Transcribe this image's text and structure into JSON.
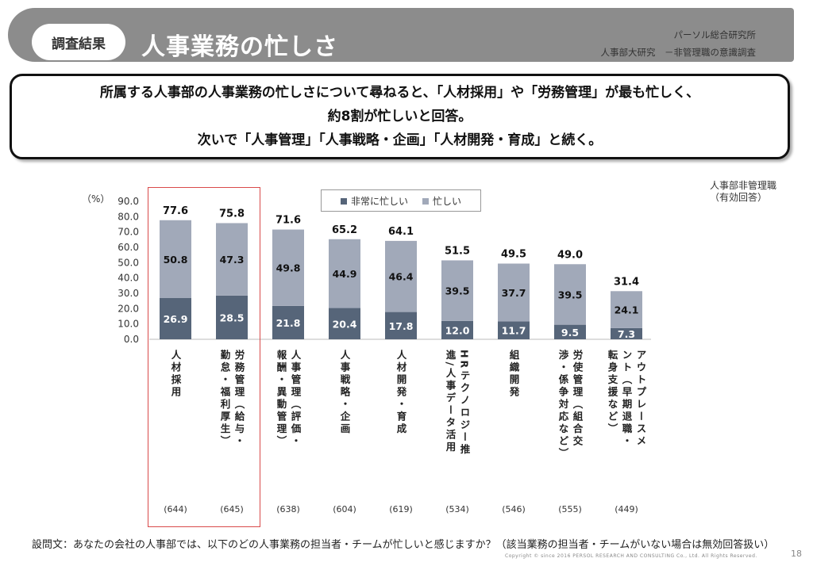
{
  "header": {
    "badge": "調査結果",
    "title": "人事業務の忙しさ",
    "org": "パーソル総合研究所",
    "survey": "人事部大研究　－非管理職の意識調査"
  },
  "summary": {
    "line1": "所属する人事部の人事業務の忙しさについて尋ねると、「人材採用」や「労務管理」が最も忙しく、",
    "line2": "約8割が忙しいと回答。",
    "line3": "次いで「人事管理」「人事戦略・企画」「人材開発・育成」と続く。"
  },
  "note_right": [
    "人事部非管理職",
    "（有効回答）"
  ],
  "colors": {
    "very_busy": "#566579",
    "busy": "#a1a9b9",
    "highlight": "#d94a4a"
  },
  "chart_data": {
    "type": "bar",
    "stacked": true,
    "unit_label": "（%）",
    "ylim": [
      0,
      90
    ],
    "yticks": [
      "0.0",
      "10.0",
      "20.0",
      "30.0",
      "40.0",
      "50.0",
      "60.0",
      "70.0",
      "80.0",
      "90.0"
    ],
    "legend": [
      "非常に忙しい",
      "忙しい"
    ],
    "categories": [
      {
        "label_columns": [
          "人材採用"
        ],
        "n": "(644)"
      },
      {
        "label_columns": [
          "労務管理（給与・",
          "勤怠・福利厚生）"
        ],
        "n": "(645)"
      },
      {
        "label_columns": [
          "人事管理（評価・",
          "報酬・異動管理）"
        ],
        "n": "(638)"
      },
      {
        "label_columns": [
          "人事戦略・企画"
        ],
        "n": "(604)"
      },
      {
        "label_columns": [
          "人材開発・育成"
        ],
        "n": "(619)"
      },
      {
        "label_columns": [
          "HRテクノロジー推",
          "進/人事データ活用"
        ],
        "n": "(534)"
      },
      {
        "label_columns": [
          "組織開発"
        ],
        "n": "(546)"
      },
      {
        "label_columns": [
          "労使管理（組合交",
          "渉・係争対応など）"
        ],
        "n": "(555)"
      },
      {
        "label_columns": [
          "アウトプレースメ",
          "ント（早期退職・",
          "転身支援など）"
        ],
        "n": "(449)"
      }
    ],
    "series": [
      {
        "name": "非常に忙しい",
        "values": [
          26.9,
          28.5,
          21.8,
          20.4,
          17.8,
          12.0,
          11.7,
          9.5,
          7.3
        ]
      },
      {
        "name": "忙しい",
        "values": [
          50.8,
          47.3,
          49.8,
          44.9,
          46.4,
          39.5,
          37.7,
          39.5,
          24.1
        ]
      }
    ],
    "totals": [
      77.6,
      75.8,
      71.6,
      65.2,
      64.1,
      51.5,
      49.5,
      49.0,
      31.4
    ],
    "highlighted_categories": [
      0,
      1
    ]
  },
  "question": "設問文：あなたの会社の人事部では、以下のどの人事業務の担当者・チームが忙しいと感じますか？（該当業務の担当者・チームがいない場合は無効回答扱い）",
  "copyright": "Copyright © since 2016 PERSOL RESEARCH AND CONSULTING Co., Ltd. All Rights Reserved.",
  "page_number": "18"
}
